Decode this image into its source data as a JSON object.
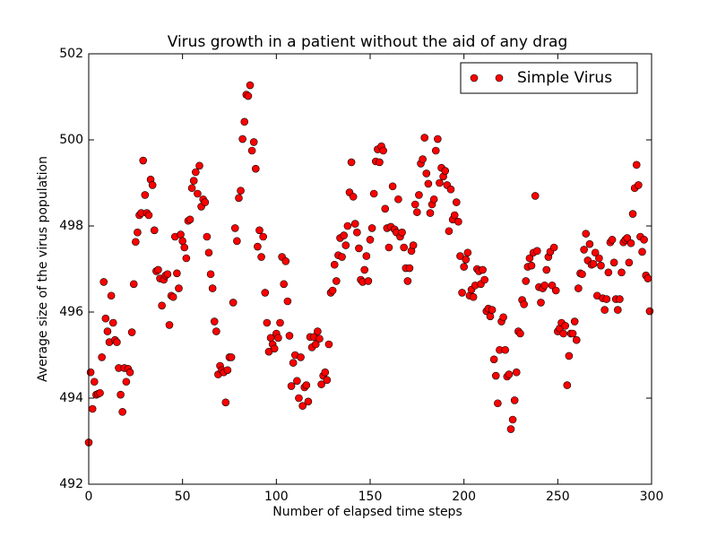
{
  "chart_data": {
    "type": "scatter",
    "title": "Virus growth in a patient without the aid of any drag",
    "x_label": "Number of elapsed time steps",
    "y_label": "Average size of the virus population",
    "x": [
      0,
      1,
      2,
      3,
      4,
      5,
      6,
      7,
      8,
      9,
      10,
      11,
      12,
      13,
      14,
      15,
      16,
      17,
      18,
      19,
      20,
      21,
      22,
      23,
      24,
      25,
      26,
      27,
      28,
      29,
      30,
      31,
      32,
      33,
      34,
      35,
      36,
      37,
      38,
      39,
      40,
      41,
      42,
      43,
      44,
      45,
      46,
      47,
      48,
      49,
      50,
      51,
      52,
      53,
      54,
      55,
      56,
      57,
      58,
      59,
      60,
      61,
      62,
      63,
      64,
      65,
      66,
      67,
      68,
      69,
      70,
      71,
      72,
      73,
      74,
      75,
      76,
      77,
      78,
      79,
      80,
      81,
      82,
      83,
      84,
      85,
      86,
      87,
      88,
      89,
      90,
      91,
      92,
      93,
      94,
      95,
      96,
      97,
      98,
      99,
      100,
      101,
      102,
      103,
      104,
      105,
      106,
      107,
      108,
      109,
      110,
      111,
      112,
      113,
      114,
      115,
      116,
      117,
      118,
      119,
      120,
      121,
      122,
      123,
      124,
      125,
      126,
      127,
      128,
      129,
      130,
      131,
      132,
      133,
      134,
      135,
      136,
      137,
      138,
      139,
      140,
      141,
      142,
      143,
      144,
      145,
      146,
      147,
      148,
      149,
      150,
      151,
      152,
      153,
      154,
      155,
      156,
      157,
      158,
      159,
      160,
      161,
      162,
      163,
      164,
      165,
      166,
      167,
      168,
      169,
      170,
      171,
      172,
      173,
      174,
      175,
      176,
      177,
      178,
      179,
      180,
      181,
      182,
      183,
      184,
      185,
      186,
      187,
      188,
      189,
      190,
      191,
      192,
      193,
      194,
      195,
      196,
      197,
      198,
      199,
      200,
      201,
      202,
      203,
      204,
      205,
      206,
      207,
      208,
      209,
      210,
      211,
      212,
      213,
      214,
      215,
      216,
      217,
      218,
      219,
      220,
      221,
      222,
      223,
      224,
      225,
      226,
      227,
      228,
      229,
      230,
      231,
      232,
      233,
      234,
      235,
      236,
      237,
      238,
      239,
      240,
      241,
      242,
      243,
      244,
      245,
      246,
      247,
      248,
      249,
      250,
      251,
      252,
      253,
      254,
      255,
      256,
      257,
      258,
      259,
      260,
      261,
      262,
      263,
      264,
      265,
      266,
      267,
      268,
      269,
      270,
      271,
      272,
      273,
      274,
      275,
      276,
      277,
      278,
      279,
      280,
      281,
      282,
      283,
      284,
      285,
      286,
      287,
      288,
      289,
      290,
      291,
      292,
      293,
      294,
      295,
      296,
      297,
      298,
      299
    ],
    "series": [
      {
        "name": "Simple Virus",
        "color": "#ff0000",
        "values": [
          492.97,
          494.6,
          493.75,
          494.38,
          494.08,
          494.1,
          494.12,
          494.95,
          496.7,
          495.85,
          495.55,
          495.3,
          496.38,
          495.75,
          495.35,
          495.3,
          494.7,
          494.08,
          493.68,
          494.7,
          494.38,
          494.68,
          494.6,
          495.53,
          496.65,
          497.63,
          497.85,
          498.25,
          498.3,
          499.52,
          498.72,
          498.3,
          498.25,
          499.08,
          498.95,
          497.9,
          496.95,
          496.98,
          496.78,
          496.15,
          496.75,
          496.85,
          496.88,
          495.7,
          496.38,
          496.35,
          497.75,
          496.9,
          496.55,
          497.8,
          497.65,
          497.5,
          497.25,
          498.12,
          498.15,
          498.88,
          499.05,
          499.25,
          498.75,
          499.4,
          498.45,
          498.62,
          498.55,
          497.75,
          497.38,
          496.88,
          496.55,
          495.78,
          495.55,
          494.55,
          494.75,
          494.65,
          494.6,
          493.9,
          494.65,
          494.95,
          494.95,
          496.22,
          497.95,
          497.65,
          498.65,
          498.82,
          500.02,
          500.42,
          501.05,
          501.02,
          501.27,
          499.75,
          499.95,
          499.33,
          497.52,
          497.9,
          497.28,
          497.75,
          496.45,
          495.75,
          495.08,
          495.4,
          495.25,
          495.15,
          495.5,
          495.4,
          495.75,
          497.28,
          496.65,
          497.18,
          496.25,
          495.45,
          494.28,
          494.82,
          495.0,
          494.4,
          494.0,
          494.95,
          493.82,
          494.25,
          494.3,
          493.92,
          495.42,
          495.18,
          495.42,
          495.25,
          495.55,
          495.38,
          494.32,
          494.52,
          494.6,
          494.42,
          495.25,
          496.45,
          496.5,
          497.1,
          496.72,
          497.32,
          497.72,
          497.28,
          497.78,
          497.55,
          498.0,
          498.78,
          499.48,
          498.68,
          498.05,
          497.85,
          497.48,
          496.75,
          496.7,
          496.98,
          497.3,
          496.72,
          497.68,
          497.95,
          498.75,
          499.5,
          499.78,
          499.48,
          499.85,
          499.75,
          498.4,
          497.95,
          497.5,
          497.98,
          498.92,
          497.92,
          497.85,
          498.62,
          497.75,
          497.85,
          497.5,
          497.02,
          496.72,
          497.02,
          497.42,
          497.55,
          498.5,
          498.32,
          498.72,
          499.45,
          499.55,
          500.05,
          499.22,
          498.98,
          498.3,
          498.5,
          498.62,
          499.75,
          500.02,
          499.0,
          499.35,
          499.15,
          499.28,
          498.95,
          497.88,
          498.85,
          498.15,
          498.25,
          498.55,
          498.1,
          497.3,
          496.45,
          497.05,
          497.22,
          497.38,
          496.38,
          496.52,
          496.35,
          496.62,
          497.0,
          496.95,
          496.65,
          496.98,
          496.75,
          496.02,
          496.08,
          495.9,
          496.05,
          494.9,
          494.52,
          493.88,
          495.12,
          495.78,
          495.88,
          495.12,
          494.5,
          494.55,
          493.28,
          493.5,
          493.95,
          494.6,
          495.55,
          495.5,
          496.28,
          496.18,
          496.72,
          497.05,
          497.25,
          497.08,
          497.38,
          498.7,
          497.42,
          496.58,
          496.22,
          496.55,
          496.62,
          496.98,
          497.28,
          497.4,
          496.62,
          497.5,
          496.5,
          495.55,
          495.62,
          495.75,
          495.5,
          495.68,
          494.3,
          494.98,
          495.5,
          495.5,
          495.78,
          495.35,
          496.55,
          496.9,
          496.88,
          497.45,
          497.82,
          497.2,
          497.58,
          497.1,
          497.12,
          497.38,
          496.38,
          497.25,
          497.08,
          496.32,
          496.05,
          496.3,
          496.92,
          497.62,
          497.68,
          497.15,
          496.3,
          496.05,
          496.3,
          496.92,
          497.62,
          497.68,
          497.72,
          497.15,
          497.6,
          498.28,
          498.88,
          499.42,
          498.95,
          497.75,
          497.4,
          497.68,
          496.85,
          496.78,
          496.02
        ]
      }
    ],
    "xlim": [
      0,
      300
    ],
    "ylim": [
      492,
      502
    ],
    "xticks": [
      0,
      50,
      100,
      150,
      200,
      250,
      300
    ],
    "yticks": [
      492,
      494,
      496,
      498,
      500,
      502
    ],
    "legend": "upper right",
    "grid": false
  }
}
